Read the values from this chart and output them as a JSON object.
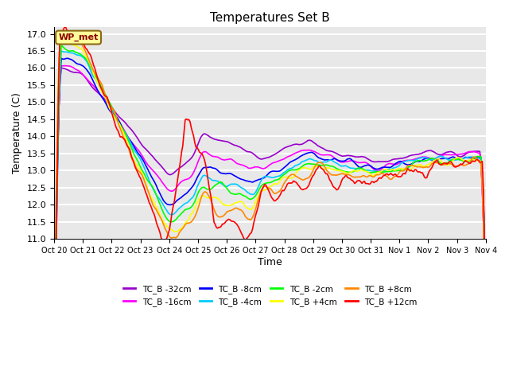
{
  "title": "Temperatures Set B",
  "xlabel": "Time",
  "ylabel": "Temperature (C)",
  "ylim": [
    11.0,
    17.2
  ],
  "yticks": [
    11.0,
    11.5,
    12.0,
    12.5,
    13.0,
    13.5,
    14.0,
    14.5,
    15.0,
    15.5,
    16.0,
    16.5,
    17.0
  ],
  "xtick_labels": [
    "Oct 20",
    "Oct 21",
    "Oct 22",
    "Oct 23",
    "Oct 24",
    "Oct 25",
    "Oct 26",
    "Oct 27",
    "Oct 28",
    "Oct 29",
    "Oct 30",
    "Oct 31",
    "Nov 1",
    "Nov 2",
    "Nov 3",
    "Nov 4"
  ],
  "wp_met_label": "WP_met",
  "series": [
    {
      "label": "TC_B -32cm",
      "color": "#9900cc"
    },
    {
      "label": "TC_B -16cm",
      "color": "#ff00ff"
    },
    {
      "label": "TC_B -8cm",
      "color": "#0000ff"
    },
    {
      "label": "TC_B -4cm",
      "color": "#00ccff"
    },
    {
      "label": "TC_B -2cm",
      "color": "#00ff00"
    },
    {
      "label": "TC_B +4cm",
      "color": "#ffff00"
    },
    {
      "label": "TC_B +8cm",
      "color": "#ff8800"
    },
    {
      "label": "TC_B +12cm",
      "color": "#ff0000"
    }
  ],
  "background_color": "#e8e8e8",
  "grid_color": "#ffffff",
  "linewidth": 1.2
}
